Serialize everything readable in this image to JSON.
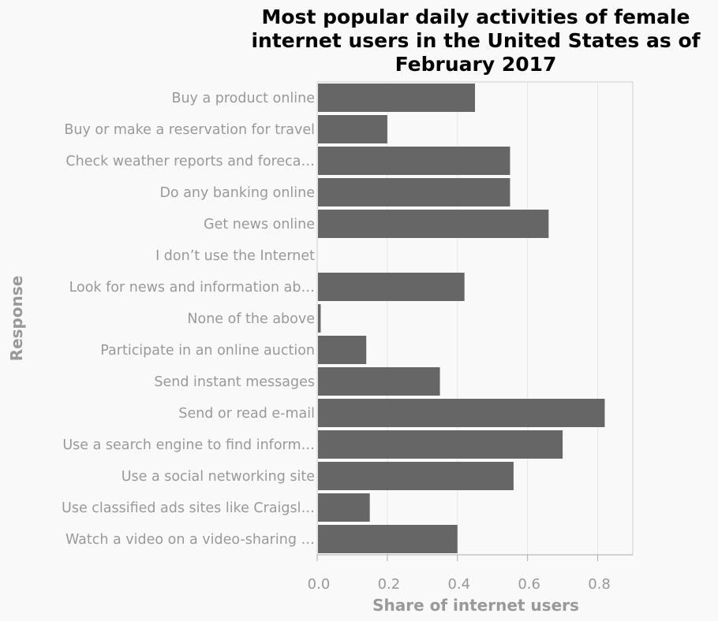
{
  "chart_data": {
    "type": "bar",
    "orientation": "horizontal",
    "title_lines": [
      "Most popular daily activities of female",
      "internet users in the United States as of",
      "February 2017"
    ],
    "xlabel": "Share of internet users",
    "ylabel": "Response",
    "xlim": [
      0,
      0.9
    ],
    "xticks": [
      0.0,
      0.2,
      0.4,
      0.6,
      0.8
    ],
    "xtick_labels": [
      "0.0",
      "0.2",
      "0.4",
      "0.6",
      "0.8"
    ],
    "grid": "vertical",
    "bar_color": "#666666",
    "categories": [
      "Buy a product online",
      "Buy or make a reservation for travel",
      "Check weather reports and foreca…",
      "Do any banking online",
      "Get news online",
      "I don’t use the Internet",
      "Look for news and information ab…",
      "None of the above",
      "Participate in an online auction",
      "Send instant messages",
      "Send or read e-mail",
      "Use a search engine to find inform…",
      "Use a social networking site",
      "Use classified ads sites like Craigsl…",
      "Watch a video on a video-sharing …"
    ],
    "values": [
      0.45,
      0.2,
      0.55,
      0.55,
      0.66,
      0.0,
      0.42,
      0.01,
      0.14,
      0.35,
      0.82,
      0.7,
      0.56,
      0.15,
      0.4
    ]
  }
}
